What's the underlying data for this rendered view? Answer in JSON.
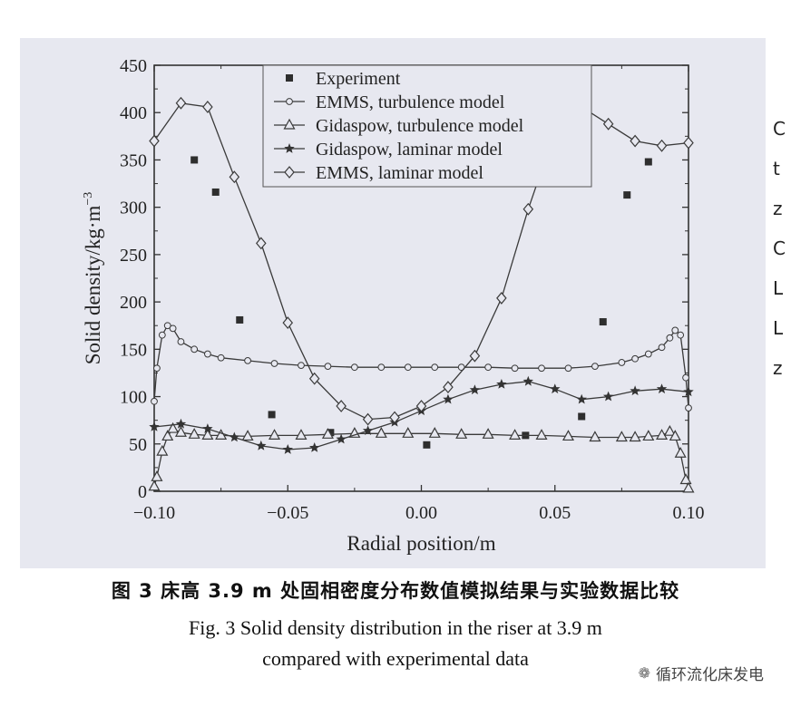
{
  "chart_data": {
    "type": "line",
    "xlabel": "Radial position/m",
    "ylabel": "Solid density/kg·m",
    "ylabel_exp": "−3",
    "xlim": [
      -0.1,
      0.1
    ],
    "ylim": [
      0,
      450
    ],
    "x_ticks": [
      -0.1,
      -0.05,
      0.0,
      0.05,
      0.1
    ],
    "x_tick_labels": [
      "−0.10",
      "−0.05",
      "0.00",
      "0.05",
      "0.10"
    ],
    "y_ticks": [
      0,
      50,
      100,
      150,
      200,
      250,
      300,
      350,
      400,
      450
    ],
    "y_tick_labels": [
      "0",
      "50",
      "100",
      "150",
      "200",
      "250",
      "300",
      "350",
      "400",
      "450"
    ],
    "legend_position": "top-center",
    "series": [
      {
        "name": "Experiment",
        "marker": "square",
        "line": false,
        "x": [
          -0.085,
          -0.077,
          -0.068,
          -0.056,
          -0.034,
          0.002,
          0.039,
          0.06,
          0.068,
          0.077,
          0.085
        ],
        "y": [
          350,
          316,
          181,
          81,
          62,
          49,
          59,
          79,
          179,
          313,
          348
        ]
      },
      {
        "name": "EMMS, turbulence model",
        "marker": "circle-open-small",
        "line": true,
        "x": [
          -0.1,
          -0.099,
          -0.097,
          -0.095,
          -0.093,
          -0.09,
          -0.085,
          -0.08,
          -0.075,
          -0.065,
          -0.055,
          -0.045,
          -0.035,
          -0.025,
          -0.015,
          -0.005,
          0.005,
          0.015,
          0.025,
          0.035,
          0.045,
          0.055,
          0.065,
          0.075,
          0.08,
          0.085,
          0.09,
          0.093,
          0.095,
          0.097,
          0.099,
          0.1
        ],
        "y": [
          95,
          130,
          165,
          175,
          172,
          158,
          150,
          145,
          141,
          138,
          135,
          133,
          132,
          131,
          131,
          131,
          131,
          131,
          131,
          130,
          130,
          130,
          132,
          136,
          140,
          145,
          152,
          162,
          170,
          165,
          120,
          88
        ]
      },
      {
        "name": "Gidaspow, turbulence model",
        "marker": "triangle-open",
        "line": true,
        "x": [
          -0.1,
          -0.099,
          -0.097,
          -0.095,
          -0.093,
          -0.09,
          -0.085,
          -0.08,
          -0.075,
          -0.065,
          -0.055,
          -0.045,
          -0.035,
          -0.025,
          -0.015,
          -0.005,
          0.005,
          0.015,
          0.025,
          0.035,
          0.045,
          0.055,
          0.065,
          0.075,
          0.08,
          0.085,
          0.09,
          0.093,
          0.095,
          0.097,
          0.099,
          0.1
        ],
        "y": [
          5,
          15,
          42,
          58,
          66,
          62,
          60,
          59,
          59,
          58,
          59,
          59,
          60,
          61,
          61,
          61,
          61,
          60,
          60,
          59,
          59,
          58,
          57,
          57,
          57,
          58,
          59,
          63,
          58,
          40,
          12,
          3
        ]
      },
      {
        "name": "Gidaspow, laminar model",
        "marker": "star-filled",
        "line": true,
        "x": [
          -0.1,
          -0.09,
          -0.08,
          -0.07,
          -0.06,
          -0.05,
          -0.04,
          -0.03,
          -0.02,
          -0.01,
          0.0,
          0.01,
          0.02,
          0.03,
          0.04,
          0.05,
          0.06,
          0.07,
          0.08,
          0.09,
          0.1
        ],
        "y": [
          68,
          71,
          66,
          57,
          48,
          44,
          46,
          55,
          64,
          73,
          85,
          97,
          107,
          113,
          116,
          108,
          97,
          100,
          106,
          108,
          105
        ]
      },
      {
        "name": "EMMS, laminar model",
        "marker": "diamond-open",
        "line": true,
        "x": [
          -0.1,
          -0.09,
          -0.08,
          -0.07,
          -0.06,
          -0.05,
          -0.04,
          -0.03,
          -0.02,
          -0.01,
          0.0,
          0.01,
          0.02,
          0.03,
          0.04,
          0.05,
          0.06,
          0.07,
          0.08,
          0.09,
          0.1
        ],
        "y": [
          370,
          410,
          406,
          332,
          262,
          178,
          119,
          90,
          76,
          78,
          90,
          110,
          143,
          204,
          298,
          380,
          406,
          388,
          370,
          365,
          368
        ]
      }
    ]
  },
  "captions": {
    "cn": "图 3  床高 3.9 m 处固相密度分布数值模拟结果与实验数据比较",
    "en_line1": "Fig. 3  Solid density distribution in the riser at 3.9 m",
    "en_line2": "compared with experimental data"
  },
  "watermark": {
    "icon": "wechat-icon",
    "text": "循环流化床发电"
  },
  "right_edge_fragments": [
    "C",
    "t",
    "z",
    "C",
    "L",
    "L",
    "z"
  ]
}
